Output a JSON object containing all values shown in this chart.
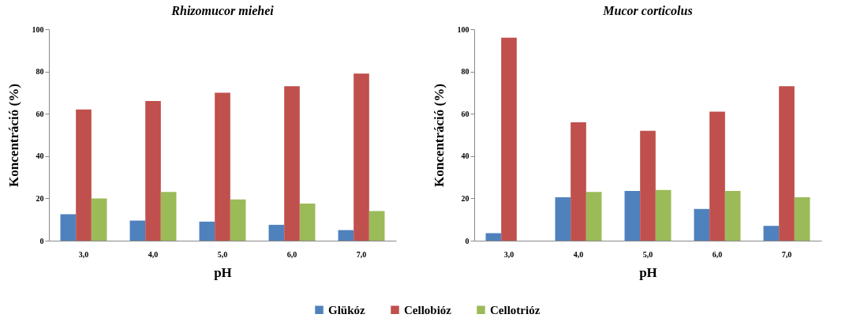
{
  "chart_data": [
    {
      "type": "bar",
      "title": "Rhizomucor miehei",
      "xlabel": "pH",
      "ylabel": "Koncentráció (%)",
      "categories": [
        "3,0",
        "4,0",
        "5,0",
        "6,0",
        "7,0"
      ],
      "series": [
        {
          "name": "Glükóz",
          "color": "#4f81bd",
          "values": [
            12.5,
            9.5,
            9,
            7.5,
            5
          ]
        },
        {
          "name": "Cellobióz",
          "color": "#c0504d",
          "values": [
            62,
            66,
            70,
            73,
            79
          ]
        },
        {
          "name": "Cellotrióz",
          "color": "#9bbb59",
          "values": [
            20,
            23,
            19.5,
            17.5,
            14
          ]
        }
      ],
      "ylim": [
        0,
        100
      ],
      "yticks": [
        0,
        20,
        40,
        60,
        80,
        100
      ],
      "grid": false,
      "legend": "bottom"
    },
    {
      "type": "bar",
      "title": "Mucor corticolus",
      "xlabel": "pH",
      "ylabel": "Koncentráció (%)",
      "categories": [
        "3,0",
        "4,0",
        "5,0",
        "6,0",
        "7,0"
      ],
      "series": [
        {
          "name": "Glükóz",
          "color": "#4f81bd",
          "values": [
            3.5,
            20.5,
            23.5,
            15,
            7
          ]
        },
        {
          "name": "Cellobióz",
          "color": "#c0504d",
          "values": [
            96,
            56,
            52,
            61,
            73
          ]
        },
        {
          "name": "Cellotrióz",
          "color": "#9bbb59",
          "values": [
            null,
            23,
            24,
            23.5,
            20.5
          ]
        }
      ],
      "ylim": [
        0,
        100
      ],
      "yticks": [
        0,
        20,
        40,
        60,
        80,
        100
      ],
      "grid": false,
      "legend": "bottom"
    }
  ]
}
